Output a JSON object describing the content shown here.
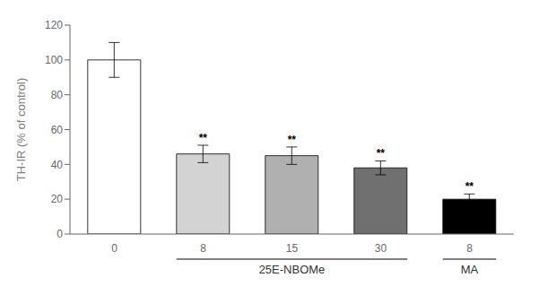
{
  "chart_data": {
    "type": "bar",
    "categories": [
      "0",
      "8",
      "15",
      "30",
      "8"
    ],
    "values": [
      100,
      46,
      45,
      38,
      20
    ],
    "errors": [
      10,
      5,
      5,
      4,
      3
    ],
    "colors": [
      "#ffffff",
      "#d3d3d3",
      "#b0b0b0",
      "#707070",
      "#000000"
    ],
    "ylabel": "TH-IR (% of control)",
    "ylim": [
      0,
      120
    ],
    "yticks": [
      0,
      20,
      40,
      60,
      80,
      100,
      120
    ],
    "grid": false,
    "annotations": [
      {
        "text": "**",
        "index": 1
      },
      {
        "text": "**",
        "index": 2
      },
      {
        "text": "**",
        "index": 3
      },
      {
        "text": "**",
        "index": 4
      },
      {
        "text": "25E-NBOMe",
        "indices": [
          1,
          2,
          3
        ]
      },
      {
        "text": "MA",
        "indices": [
          4
        ]
      }
    ]
  }
}
